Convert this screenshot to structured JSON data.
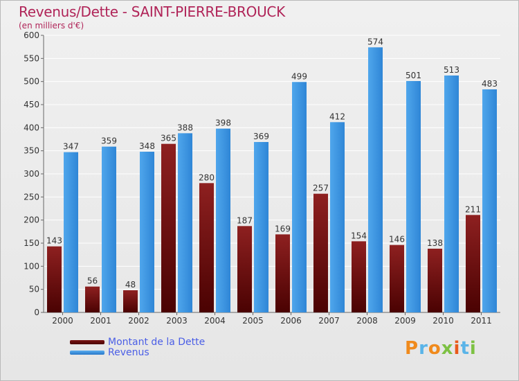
{
  "chart_data": {
    "type": "bar",
    "title": "Revenus/Dette - SAINT-PIERRE-BROUCK",
    "subtitle": "(en milliers d'€)",
    "xlabel": "",
    "ylabel": "",
    "ylim": [
      0,
      600
    ],
    "yticks": [
      0,
      50,
      100,
      150,
      200,
      250,
      300,
      350,
      400,
      450,
      500,
      550,
      600
    ],
    "categories": [
      "2000",
      "2001",
      "2002",
      "2003",
      "2004",
      "2005",
      "2006",
      "2007",
      "2008",
      "2009",
      "2010",
      "2011"
    ],
    "series": [
      {
        "name": "Montant de la Dette",
        "color": "#8b1a1a",
        "values": [
          143,
          56,
          48,
          365,
          280,
          187,
          169,
          257,
          154,
          146,
          138,
          211
        ]
      },
      {
        "name": "Revenus",
        "color": "#3a93dc",
        "values": [
          347,
          359,
          348,
          388,
          398,
          369,
          499,
          412,
          574,
          501,
          513,
          483
        ]
      }
    ],
    "legend_position": "bottom-left",
    "grid": true
  },
  "colors": {
    "title": "#b02458",
    "legend_text": "#4a5ee6"
  },
  "legend": {
    "dette_label": "Montant de la Dette",
    "revenus_label": "Revenus"
  },
  "brand": {
    "logo_text": "Proxiti"
  }
}
